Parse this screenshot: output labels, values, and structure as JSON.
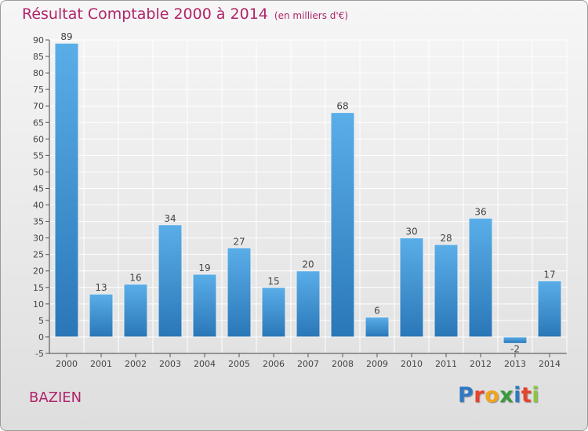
{
  "chart_data": {
    "type": "bar",
    "title": "Résultat Comptable 2000 à 2014",
    "subtitle": "(en milliers d'€)",
    "categories": [
      "2000",
      "2001",
      "2002",
      "2003",
      "2004",
      "2005",
      "2006",
      "2007",
      "2008",
      "2009",
      "2010",
      "2011",
      "2012",
      "2013",
      "2014"
    ],
    "values": [
      89,
      13,
      16,
      34,
      19,
      27,
      15,
      20,
      68,
      6,
      30,
      28,
      36,
      -2,
      17
    ],
    "ylim": [
      -5,
      90
    ],
    "yticks": [
      -5,
      0,
      5,
      10,
      15,
      20,
      25,
      30,
      35,
      40,
      45,
      50,
      55,
      60,
      65,
      70,
      75,
      80,
      85,
      90
    ],
    "grid": true,
    "xlabel": "",
    "ylabel": ""
  },
  "commune": "BAZIEN",
  "logo": {
    "letters": [
      "P",
      "r",
      "o",
      "x",
      "i",
      "t",
      "i"
    ],
    "colors": [
      "#2f78c4",
      "#e8422c",
      "#f0a51a",
      "#3a9b3a",
      "#2f78c4",
      "#e8422c",
      "#8cc63f"
    ]
  },
  "colors": {
    "bar_top": "#5aaee8",
    "bar_bottom": "#2a77b8",
    "title": "#b0246a",
    "grid": "#ffffff"
  }
}
